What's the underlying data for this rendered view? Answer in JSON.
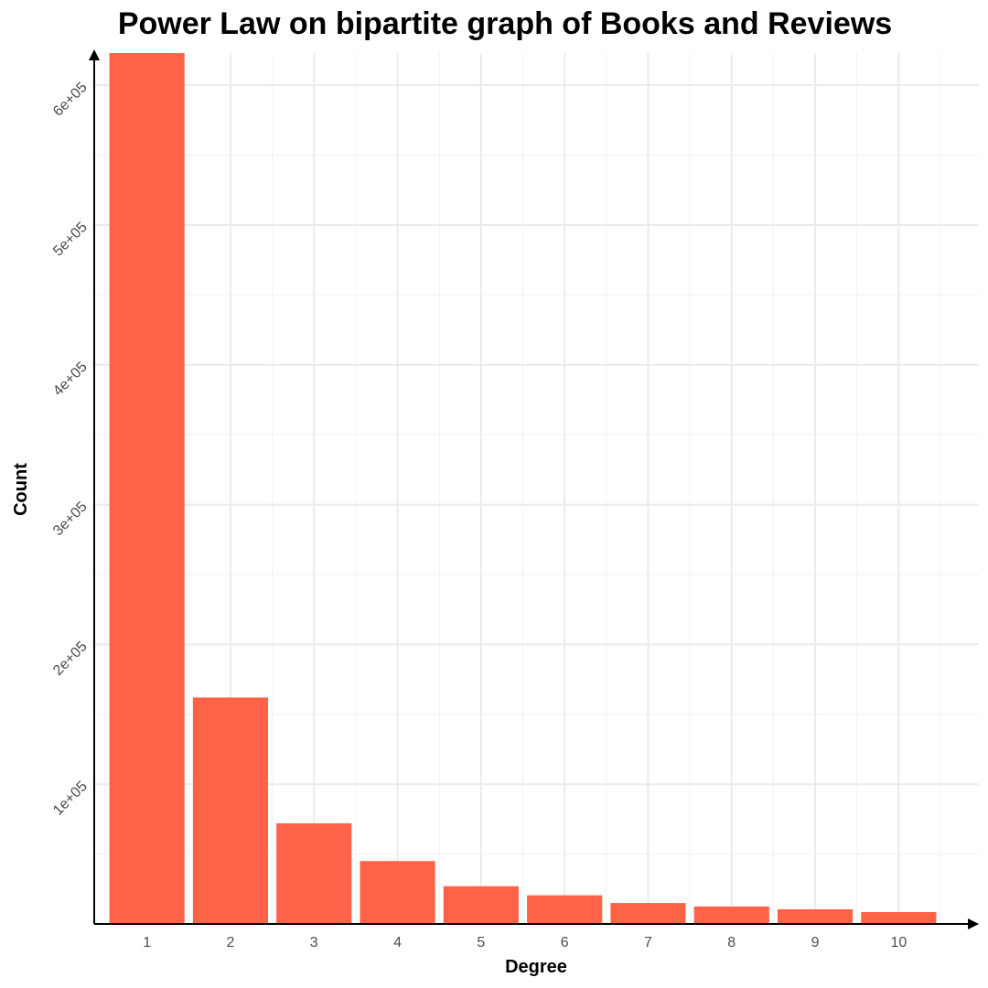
{
  "chart_data": {
    "type": "bar",
    "title": "Power Law on bipartite graph of Books and Reviews",
    "xlabel": "Degree",
    "ylabel": "Count",
    "categories": [
      "1",
      "2",
      "3",
      "4",
      "5",
      "6",
      "7",
      "8",
      "9",
      "10"
    ],
    "values": [
      623000,
      162000,
      72000,
      45000,
      27000,
      20500,
      15000,
      12500,
      10500,
      8500
    ],
    "ylim": [
      0,
      623000
    ],
    "yticks": [
      100000,
      200000,
      300000,
      400000,
      500000,
      600000
    ],
    "ytick_labels": [
      "1e+05",
      "2e+05",
      "3e+05",
      "4e+05",
      "5e+05",
      "6e+05"
    ],
    "bar_color": "#ff6347",
    "grid": true,
    "legend": "none"
  }
}
